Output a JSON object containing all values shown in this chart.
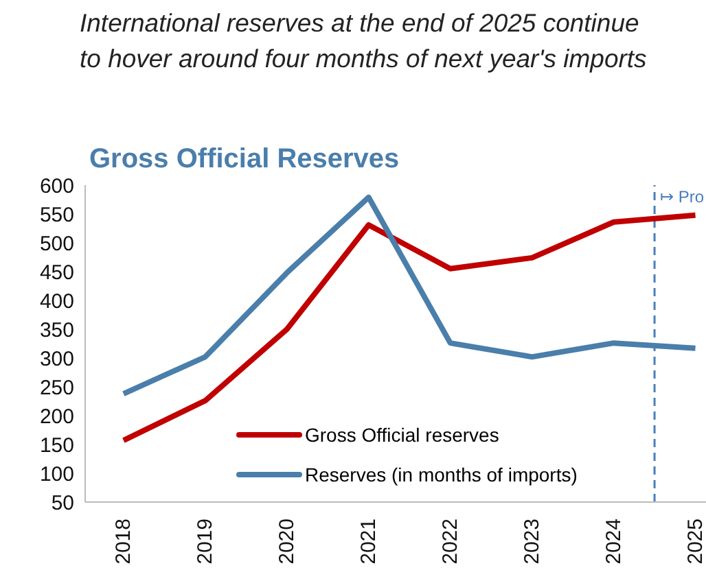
{
  "chart_data": {
    "type": "line",
    "title": "International reserves at the end of 2025 continue\nto hover around four months of next year's imports",
    "subtitle": "Gross Official Reserves",
    "x": [
      2018,
      2019,
      2020,
      2021,
      2022,
      2023,
      2024,
      2025
    ],
    "series": [
      {
        "name": "Gross Official reserves",
        "color": "#c00000",
        "values": [
          157,
          226,
          350,
          531,
          455,
          474,
          536,
          548
        ]
      },
      {
        "name": "Reserves (in months of imports)",
        "color": "#4a7eab",
        "values": [
          238,
          302,
          448,
          579,
          326,
          302,
          326,
          317
        ]
      }
    ],
    "xlim": [
      2017.53,
      2025.13
    ],
    "xticks": [
      2018,
      2019,
      2020,
      2021,
      2022,
      2023,
      2024,
      2025
    ],
    "ylim": [
      50,
      600
    ],
    "yticks": [
      50,
      100,
      150,
      200,
      250,
      300,
      350,
      400,
      450,
      500,
      550,
      600
    ],
    "ref_lines": [
      {
        "axis": "x",
        "value": 2024.5,
        "label": "↦ Pro",
        "color": "#4a7ebb",
        "line_style": "dashed"
      }
    ],
    "grid": false,
    "legend": "bottom",
    "marker": "none",
    "line_style": "solid"
  }
}
